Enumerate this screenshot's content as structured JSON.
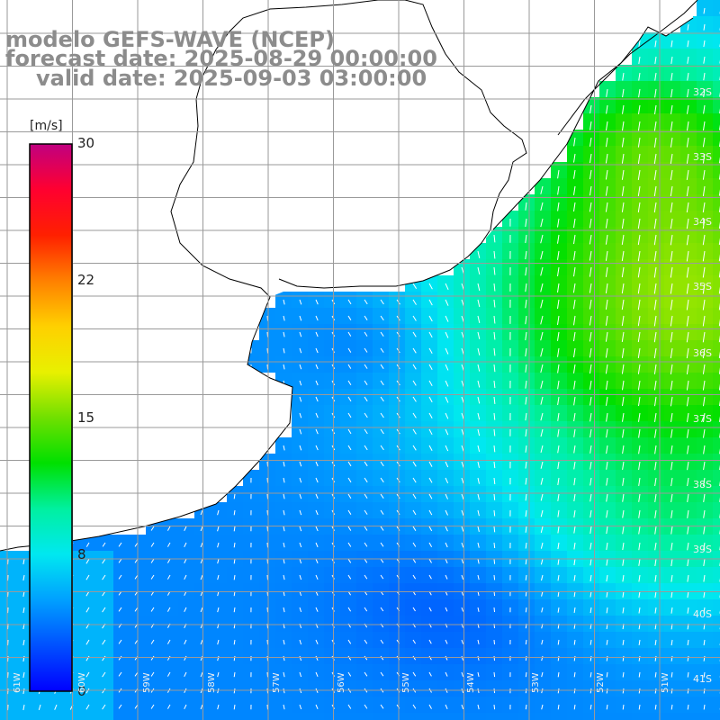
{
  "title": {
    "line1": "modelo GEFS-WAVE (NCEP)",
    "line2": "forecast date: 2025-08-29 00:00:00",
    "line3": "valid date: 2025-09-03 03:00:00"
  },
  "colorbar": {
    "unit": "[m/s]",
    "ticks": [
      "30",
      "22",
      "15",
      "8",
      "0"
    ],
    "range": [
      0,
      30
    ],
    "colors": [
      "#0000ff",
      "#0050ff",
      "#00a0ff",
      "#00e8f0",
      "#00f0a0",
      "#00e000",
      "#70e000",
      "#e8f000",
      "#ffd000",
      "#ff8000",
      "#ff2000",
      "#ff0030",
      "#c00080"
    ]
  },
  "lat_labels": [
    "32S",
    "33S",
    "34S",
    "35S",
    "36S",
    "37S",
    "38S",
    "39S",
    "40S",
    "41S"
  ],
  "lon_labels": [
    "61W",
    "60W",
    "59W",
    "58W",
    "57W",
    "56W",
    "55W",
    "54W",
    "53W",
    "52W",
    "51W"
  ],
  "land_color": "#ffffff",
  "grid_color": "#9a9a9a"
}
